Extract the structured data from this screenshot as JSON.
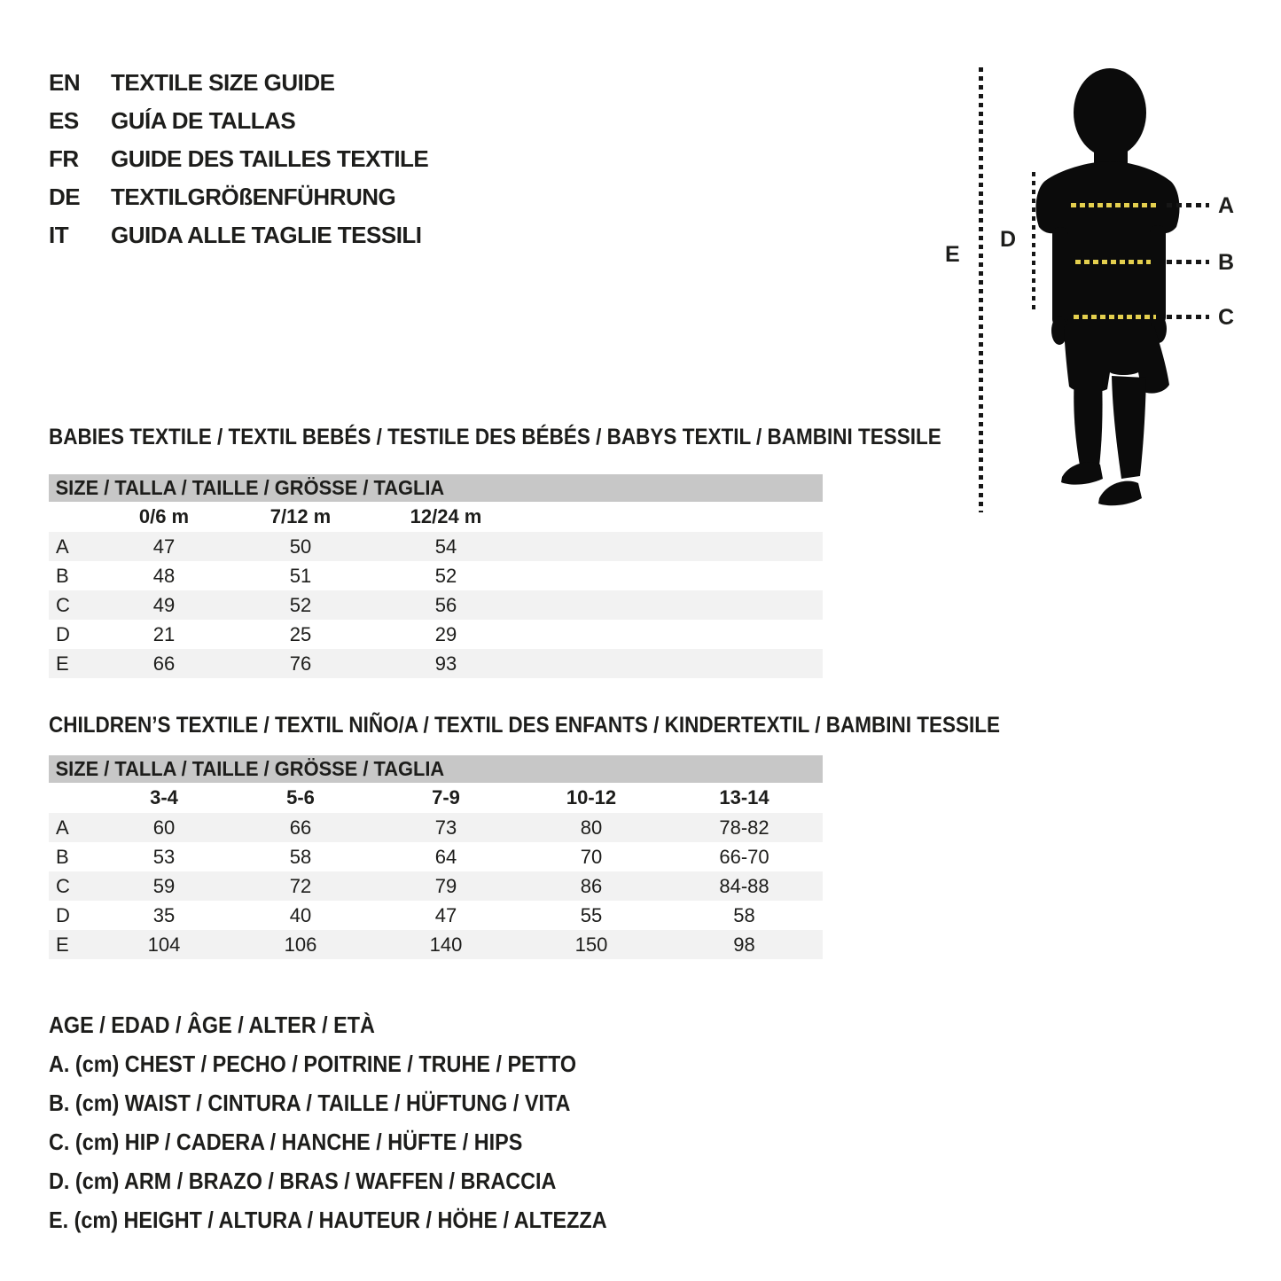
{
  "colors": {
    "text": "#1d1d1b",
    "band_gray": "#c7c7c7",
    "stripe_gray": "#f2f2f2",
    "accent_yellow": "#e4cf4e",
    "line_black": "#161616",
    "silhouette_black": "#0b0b0b"
  },
  "header": {
    "languages": [
      {
        "code": "EN",
        "title": "TEXTILE SIZE GUIDE"
      },
      {
        "code": "ES",
        "title": "GUÍA DE TALLAS"
      },
      {
        "code": "FR",
        "title": "GUIDE DES TAILLES TEXTILE"
      },
      {
        "code": "DE",
        "title": "TEXTILGRÖßENFÜHRUNG"
      },
      {
        "code": "IT",
        "title": "GUIDA ALLE TAGLIE TESSILI"
      }
    ]
  },
  "figure": {
    "silhouette": "child-silhouette",
    "labels": {
      "a": "A",
      "b": "B",
      "c": "C",
      "d": "D",
      "e": "E"
    }
  },
  "babies": {
    "title": "BABIES TEXTILE / TEXTIL BEBÉS / TESTILE DES BÉBÉS / BABYS TEXTIL / BAMBINI TESSILE",
    "band": "SIZE / TALLA / TAILLE / GRÖSSE / TAGLIA",
    "columns": [
      "0/6 m",
      "7/12 m",
      "12/24 m"
    ],
    "rows": [
      {
        "label": "A",
        "values": [
          "47",
          "50",
          "54"
        ]
      },
      {
        "label": "B",
        "values": [
          "48",
          "51",
          "52"
        ]
      },
      {
        "label": "C",
        "values": [
          "49",
          "52",
          "56"
        ]
      },
      {
        "label": "D",
        "values": [
          "21",
          "25",
          "29"
        ]
      },
      {
        "label": "E",
        "values": [
          "66",
          "76",
          "93"
        ]
      }
    ]
  },
  "children": {
    "title": "CHILDREN’S TEXTILE / TEXTIL NIÑO/A / TEXTIL DES ENFANTS / KINDERTEXTIL / BAMBINI TESSILE",
    "band": "SIZE / TALLA / TAILLE / GRÖSSE / TAGLIA",
    "columns": [
      "3-4",
      "5-6",
      "7-9",
      "10-12",
      "13-14"
    ],
    "rows": [
      {
        "label": "A",
        "values": [
          "60",
          "66",
          "73",
          "80",
          "78-82"
        ]
      },
      {
        "label": "B",
        "values": [
          "53",
          "58",
          "64",
          "70",
          "66-70"
        ]
      },
      {
        "label": "C",
        "values": [
          "59",
          "72",
          "79",
          "86",
          "84-88"
        ]
      },
      {
        "label": "D",
        "values": [
          "35",
          "40",
          "47",
          "55",
          "58"
        ]
      },
      {
        "label": "E",
        "values": [
          "104",
          "106",
          "140",
          "150",
          "98"
        ]
      }
    ]
  },
  "legend": {
    "lines": [
      "AGE / EDAD / ÂGE / ALTER / ETÀ",
      "A. (cm) CHEST / PECHO / POITRINE / TRUHE / PETTO",
      "B. (cm) WAIST / CINTURA / TAILLE / HÜFTUNG / VITA",
      "C. (cm) HIP / CADERA / HANCHE / HÜFTE / HIPS",
      "D. (cm) ARM / BRAZO / BRAS / WAFFEN / BRACCIA",
      "E. (cm) HEIGHT / ALTURA / HAUTEUR / HÖHE / ALTEZZA"
    ]
  }
}
